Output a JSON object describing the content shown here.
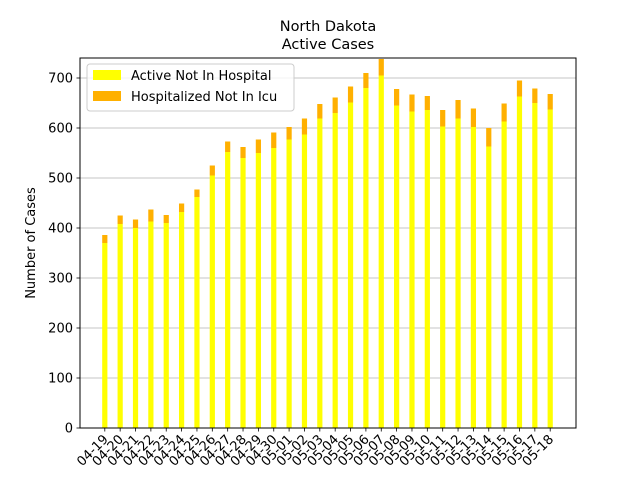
{
  "chart_data": {
    "type": "bar",
    "stacked": true,
    "title": "North Dakota",
    "subtitle": "Active Cases",
    "xlabel": "",
    "ylabel": "Number of Cases",
    "ylim": [
      0,
      740
    ],
    "yticks": [
      0,
      100,
      200,
      300,
      400,
      500,
      600,
      700
    ],
    "grid": "horizontal",
    "legend_position": "top-left",
    "categories": [
      "04-19",
      "04-20",
      "04-21",
      "04-22",
      "04-23",
      "04-24",
      "04-25",
      "04-26",
      "04-27",
      "04-28",
      "04-29",
      "04-30",
      "05-01",
      "05-02",
      "05-03",
      "05-04",
      "05-05",
      "05-06",
      "05-07",
      "05-08",
      "05-09",
      "05-10",
      "05-11",
      "05-12",
      "05-13",
      "05-14",
      "05-15",
      "05-16",
      "05-17",
      "05-18"
    ],
    "series": [
      {
        "name": "Active Not In Hospital",
        "color": "#ffff00",
        "values": [
          370,
          408,
          400,
          413,
          410,
          432,
          462,
          505,
          552,
          540,
          550,
          560,
          577,
          587,
          619,
          630,
          651,
          680,
          705,
          645,
          633,
          636,
          603,
          619,
          602,
          563,
          613,
          663,
          650,
          637
        ]
      },
      {
        "name": "Hospitalized Not In Icu",
        "color": "#ffb000",
        "values": [
          16,
          17,
          17,
          24,
          16,
          17,
          15,
          20,
          21,
          22,
          27,
          31,
          25,
          32,
          29,
          31,
          32,
          30,
          33,
          33,
          34,
          28,
          33,
          37,
          37,
          37,
          36,
          32,
          29,
          31
        ]
      }
    ]
  }
}
